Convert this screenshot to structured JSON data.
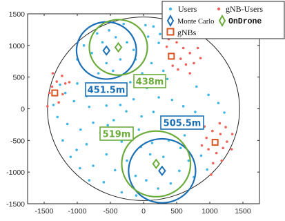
{
  "chart_data": {
    "type": "scatter",
    "xlim": [
      -1750,
      1750
    ],
    "ylim": [
      -1500,
      1500
    ],
    "xticks": [
      -1500,
      -1000,
      -500,
      0,
      500,
      1000,
      1500
    ],
    "yticks": [
      1500,
      1000,
      500,
      0,
      -500,
      -1000,
      -1500
    ],
    "xtick_labels": [
      "-1500",
      "-1000",
      "-500",
      "0",
      "500",
      "1000",
      "1500"
    ],
    "ytick_labels": [
      "1500",
      "1000",
      "500",
      "0",
      "-500",
      "-1000",
      "-1500"
    ],
    "cell_radius": 1450,
    "colors": {
      "users": "#3fb6e6",
      "gnb_users": "#f2645a",
      "monte_carlo": "#1a6fb5",
      "ondrone": "#6aab3a",
      "gnbs": "#d9541e",
      "cell_boundary": "#222222",
      "label_blue_text": "#1a6fb5",
      "label_green_text": "#6aab3a"
    },
    "legend": {
      "users": "Users",
      "gnb_users": "gNB-Users",
      "monte_carlo": "Monte Carlo",
      "ondrone": "OnDrone",
      "gnbs": "gNBs"
    },
    "labels": {
      "label_451": "451.5m",
      "label_438": "438m",
      "label_519": "519m",
      "label_505": "505.5m"
    },
    "drone_positions": {
      "monte_carlo": [
        [
          -560,
          920
        ],
        [
          280,
          -980
        ]
      ],
      "ondrone": [
        [
          -380,
          970
        ],
        [
          190,
          -870
        ]
      ]
    },
    "coverage_circles": {
      "monte_carlo": [
        {
          "center": [
            -560,
            920
          ],
          "radius": 451.5
        },
        {
          "center": [
            280,
            -980
          ],
          "radius": 505.5
        }
      ],
      "ondrone": [
        {
          "center": [
            -380,
            970
          ],
          "radius": 438
        },
        {
          "center": [
            190,
            -870
          ],
          "radius": 519
        }
      ]
    },
    "gnbs": [
      [
        -1340,
        250
      ],
      [
        420,
        830
      ],
      [
        1080,
        -530
      ]
    ],
    "users": [
      [
        -520,
        1240
      ],
      [
        -300,
        1340
      ],
      [
        -700,
        1190
      ],
      [
        -620,
        1050
      ],
      [
        -420,
        1130
      ],
      [
        -780,
        880
      ],
      [
        -350,
        780
      ],
      [
        -560,
        720
      ],
      [
        -250,
        1050
      ],
      [
        -150,
        930
      ],
      [
        -120,
        780
      ],
      [
        -900,
        1000
      ],
      [
        -1000,
        780
      ],
      [
        -460,
        600
      ],
      [
        -680,
        560
      ],
      [
        30,
        1320
      ],
      [
        150,
        1300
      ],
      [
        70,
        1140
      ],
      [
        250,
        1180
      ],
      [
        230,
        1040
      ],
      [
        120,
        720
      ],
      [
        300,
        600
      ],
      [
        360,
        470
      ],
      [
        -20,
        560
      ],
      [
        -200,
        420
      ],
      [
        -650,
        400
      ],
      [
        -1000,
        400
      ],
      [
        -1180,
        250
      ],
      [
        -1050,
        120
      ],
      [
        -860,
        200
      ],
      [
        -820,
        30
      ],
      [
        -560,
        50
      ],
      [
        -350,
        60
      ],
      [
        -150,
        150
      ],
      [
        50,
        330
      ],
      [
        230,
        180
      ],
      [
        430,
        140
      ],
      [
        600,
        40
      ],
      [
        780,
        -50
      ],
      [
        980,
        220
      ],
      [
        1130,
        90
      ],
      [
        1220,
        -60
      ],
      [
        800,
        350
      ],
      [
        -1300,
        -130
      ],
      [
        -1150,
        -240
      ],
      [
        -950,
        -330
      ],
      [
        -1220,
        -500
      ],
      [
        -1010,
        -650
      ],
      [
        -860,
        -560
      ],
      [
        -650,
        -380
      ],
      [
        -450,
        -180
      ],
      [
        -260,
        -40
      ],
      [
        -30,
        -120
      ],
      [
        150,
        -50
      ],
      [
        340,
        -240
      ],
      [
        530,
        -200
      ],
      [
        620,
        -420
      ],
      [
        820,
        -300
      ],
      [
        -70,
        -330
      ],
      [
        -330,
        -520
      ],
      [
        -560,
        -720
      ],
      [
        -760,
        -900
      ],
      [
        -960,
        -940
      ],
      [
        -1100,
        -760
      ],
      [
        -820,
        -1130
      ],
      [
        -600,
        -1160
      ],
      [
        -430,
        -970
      ],
      [
        -250,
        -820
      ],
      [
        -40,
        -600
      ],
      [
        130,
        -540
      ],
      [
        380,
        -500
      ],
      [
        560,
        -620
      ],
      [
        680,
        -820
      ],
      [
        540,
        -980
      ],
      [
        410,
        -1180
      ],
      [
        220,
        -1260
      ],
      [
        40,
        -1130
      ],
      [
        -120,
        -1060
      ],
      [
        -330,
        -1320
      ],
      [
        -110,
        -1370
      ],
      [
        100,
        -720
      ],
      [
        300,
        -760
      ],
      [
        -1360,
        60
      ],
      [
        -1260,
        380
      ],
      [
        870,
        -740
      ],
      [
        960,
        -960
      ],
      [
        760,
        -1080
      ],
      [
        -540,
        -260
      ],
      [
        -760,
        -220
      ]
    ],
    "gnb_users": [
      [
        -1420,
        250
      ],
      [
        -1310,
        430
      ],
      [
        -1230,
        520
      ],
      [
        -1370,
        560
      ],
      [
        -1180,
        400
      ],
      [
        -1280,
        100
      ],
      [
        -1450,
        40
      ],
      [
        -1220,
        230
      ],
      [
        -1120,
        420
      ],
      [
        -1380,
        350
      ],
      [
        350,
        980
      ],
      [
        500,
        1050
      ],
      [
        600,
        960
      ],
      [
        700,
        880
      ],
      [
        560,
        790
      ],
      [
        640,
        700
      ],
      [
        520,
        620
      ],
      [
        760,
        720
      ],
      [
        860,
        800
      ],
      [
        440,
        680
      ],
      [
        700,
        560
      ],
      [
        820,
        960
      ],
      [
        380,
        1100
      ],
      [
        610,
        1120
      ],
      [
        920,
        -280
      ],
      [
        1040,
        -350
      ],
      [
        1160,
        -400
      ],
      [
        1260,
        -520
      ],
      [
        1330,
        -640
      ],
      [
        1200,
        -620
      ],
      [
        1100,
        -700
      ],
      [
        980,
        -640
      ],
      [
        1180,
        -820
      ],
      [
        1050,
        -860
      ],
      [
        950,
        -460
      ],
      [
        1240,
        -290
      ],
      [
        1340,
        -400
      ],
      [
        1020,
        -1040
      ],
      [
        880,
        -580
      ],
      [
        1150,
        -230
      ]
    ]
  }
}
